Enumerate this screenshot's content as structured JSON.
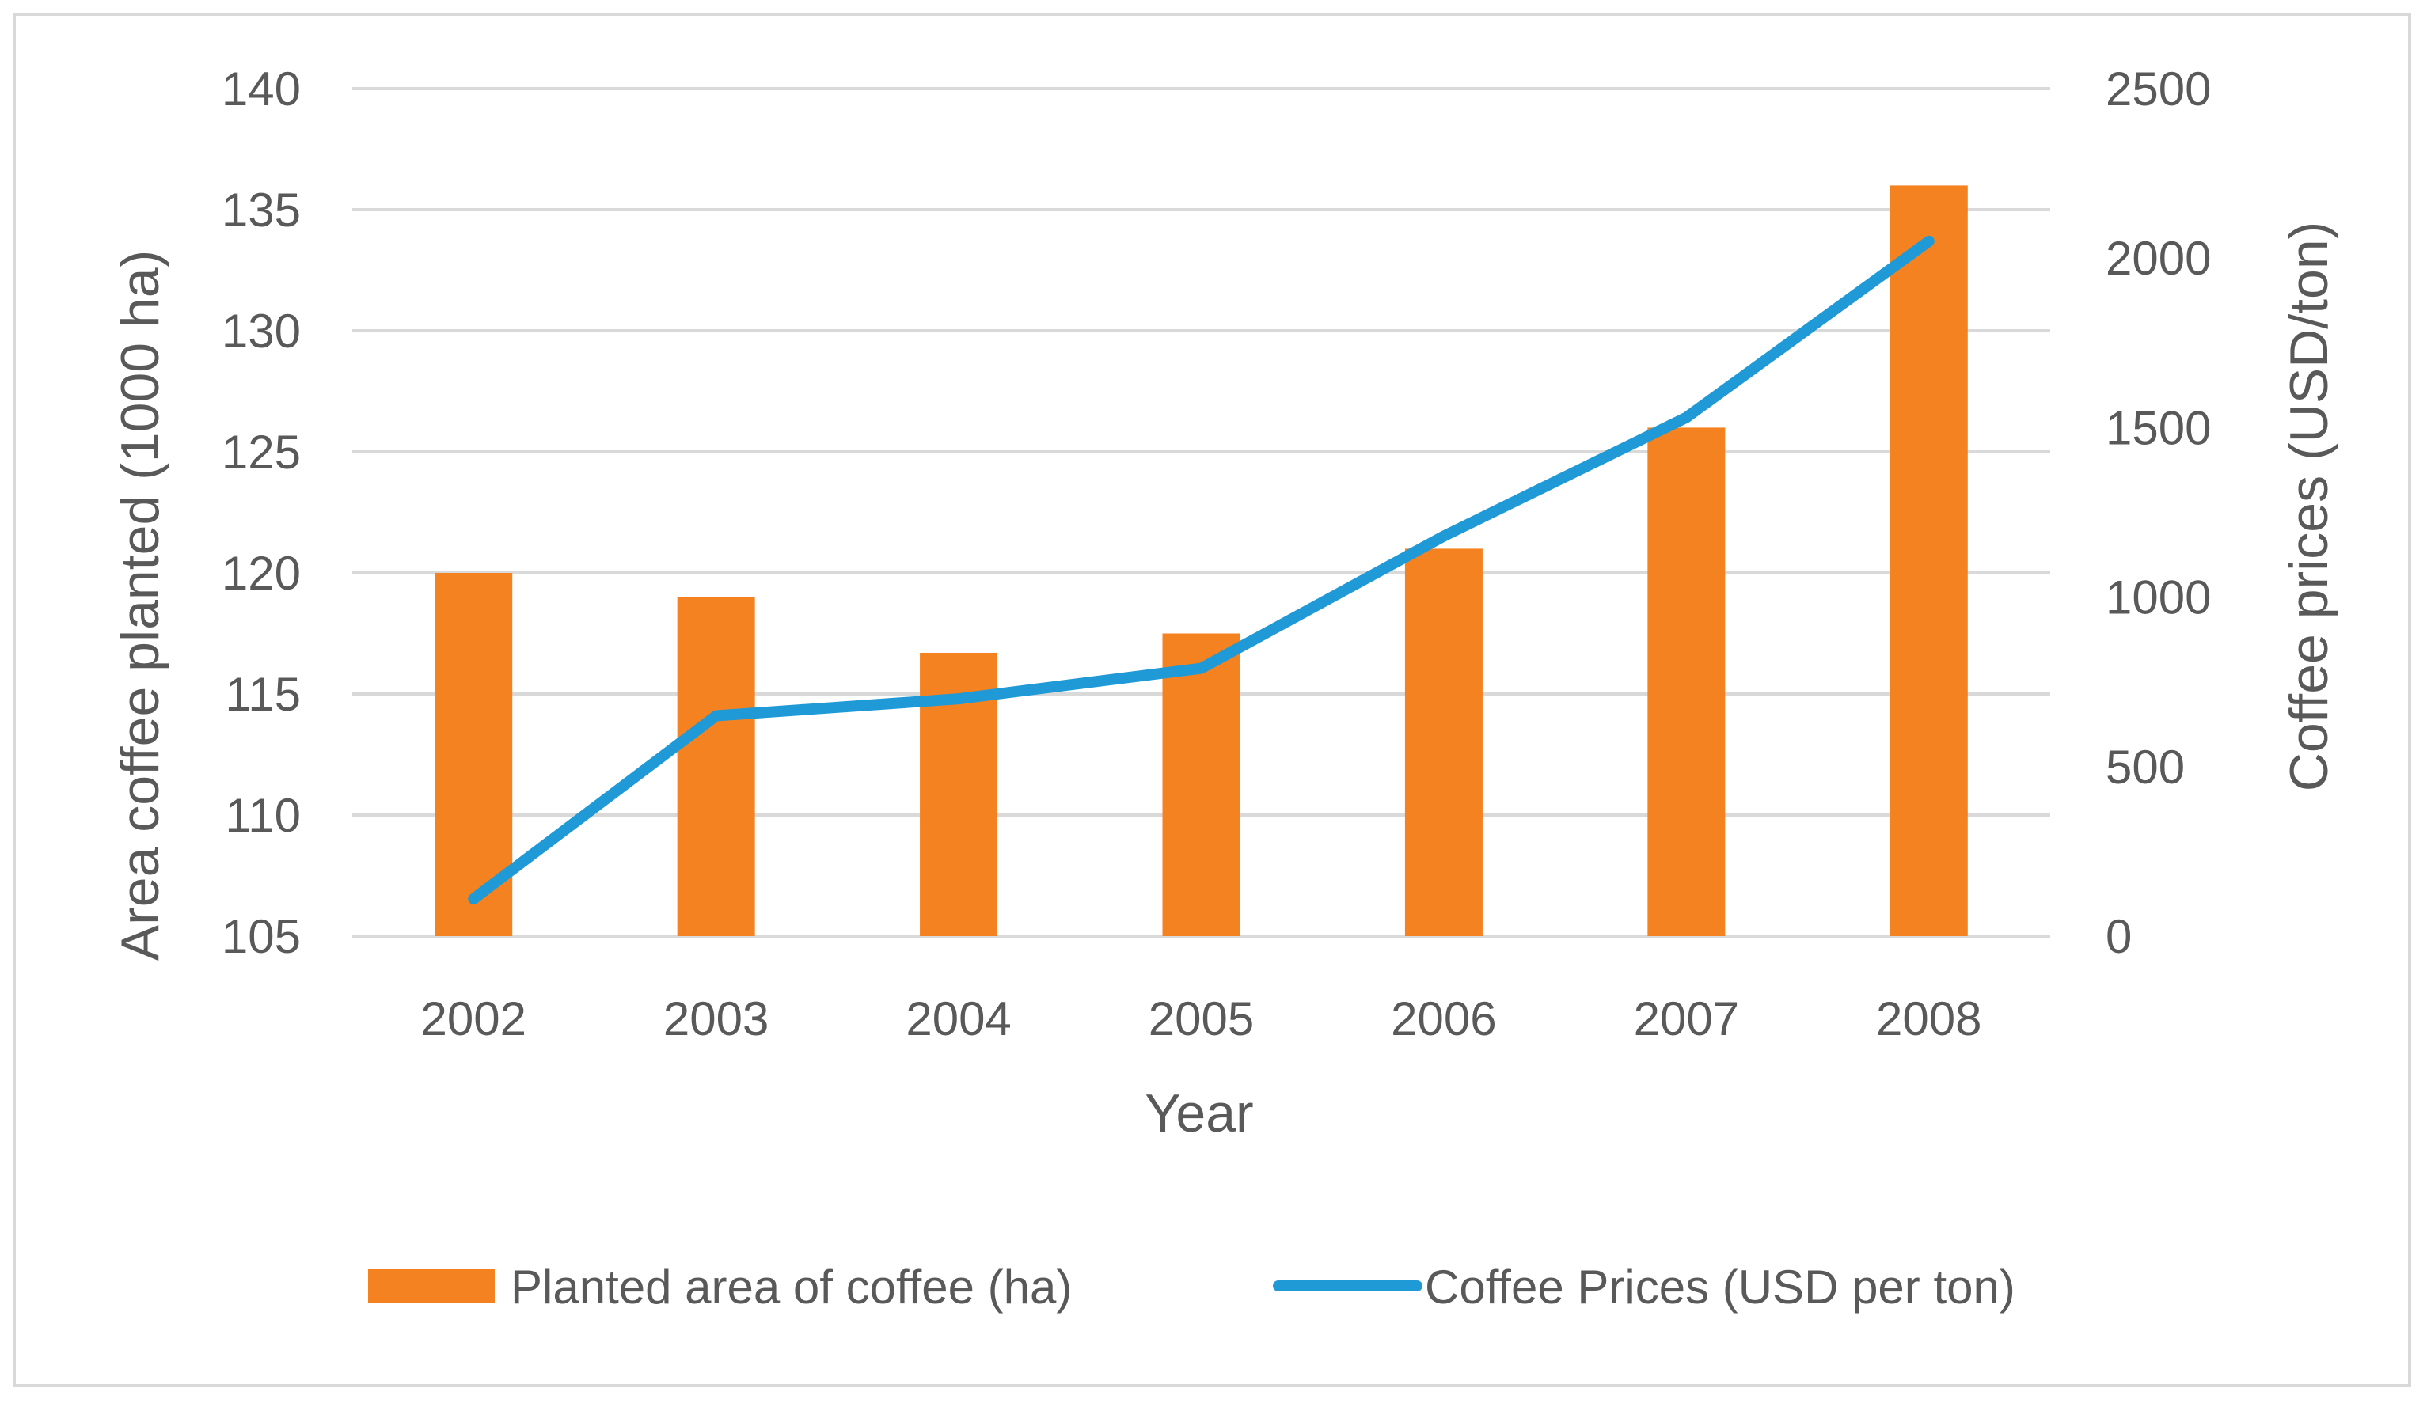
{
  "chart_data": {
    "type": "bar",
    "categories": [
      "2002",
      "2003",
      "2004",
      "2005",
      "2006",
      "2007",
      "2008"
    ],
    "series": [
      {
        "name": "Planted area of coffee (ha)",
        "type": "bar",
        "axis": "left",
        "color": "#f58220",
        "values": [
          120,
          119,
          116.7,
          117.5,
          121,
          126,
          136
        ]
      },
      {
        "name": "Coffee Prices (USD per ton)",
        "type": "line",
        "axis": "right",
        "color": "#1f9ad6",
        "values": [
          110,
          650,
          700,
          790,
          1180,
          1530,
          2050
        ]
      }
    ],
    "xlabel": "Year",
    "ylabel": "Area coffee planted (1000 ha)",
    "y2label": "Coffee prices (USD/ton)",
    "ylim": [
      105,
      140
    ],
    "y2lim": [
      0,
      2500
    ],
    "yticks": [
      "105",
      "110",
      "115",
      "120",
      "125",
      "130",
      "135",
      "140"
    ],
    "y2ticks": [
      "0",
      "500",
      "1000",
      "1500",
      "2000",
      "2500"
    ],
    "grid": true,
    "legend_position": "bottom"
  }
}
